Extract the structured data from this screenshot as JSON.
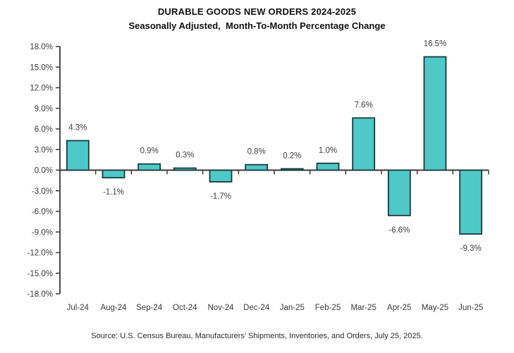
{
  "header": {
    "title": "DURABLE GOODS NEW ORDERS 2024-2025",
    "subtitle": "Seasonally Adjusted,  Month-To-Month Percentage Change"
  },
  "footer": {
    "source": "Source: U.S. Census Bureau, Manufacturers’ Shipments, Inventories, and Orders, July 25, 2025."
  },
  "chart_data": {
    "type": "bar",
    "title": "DURABLE GOODS NEW ORDERS 2024-2025",
    "subtitle": "Seasonally Adjusted,  Month-To-Month Percentage Change",
    "categories": [
      "Jul-24",
      "Aug-24",
      "Sep-24",
      "Oct-24",
      "Nov-24",
      "Dec-24",
      "Jan-25",
      "Feb-25",
      "Mar-25",
      "Apr-25",
      "May-25",
      "Jun-25"
    ],
    "values": [
      4.3,
      -1.1,
      0.9,
      0.3,
      -1.7,
      0.8,
      0.2,
      1.0,
      7.6,
      -6.6,
      16.5,
      -9.3
    ],
    "data_labels": [
      "4.3%",
      "-1.1%",
      "0.9%",
      "0.3%",
      "-1.7%",
      "0.8%",
      "0.2%",
      "1.0%",
      "7.6%",
      "-6.6%",
      "16.5%",
      "-9.3%"
    ],
    "xlabel": "",
    "ylabel": "",
    "ylim": [
      -18,
      18
    ],
    "ytick_step": 3,
    "ytick_decimals": 1,
    "ytick_suffix": "%",
    "grid": false,
    "legend": "none",
    "colors": {
      "bar_fill": "#4FC8C8",
      "bar_border": "#1b3a3c",
      "axis": "#3a3a3a",
      "tick_label": "#3c3c3c",
      "data_label": "#404040"
    }
  }
}
